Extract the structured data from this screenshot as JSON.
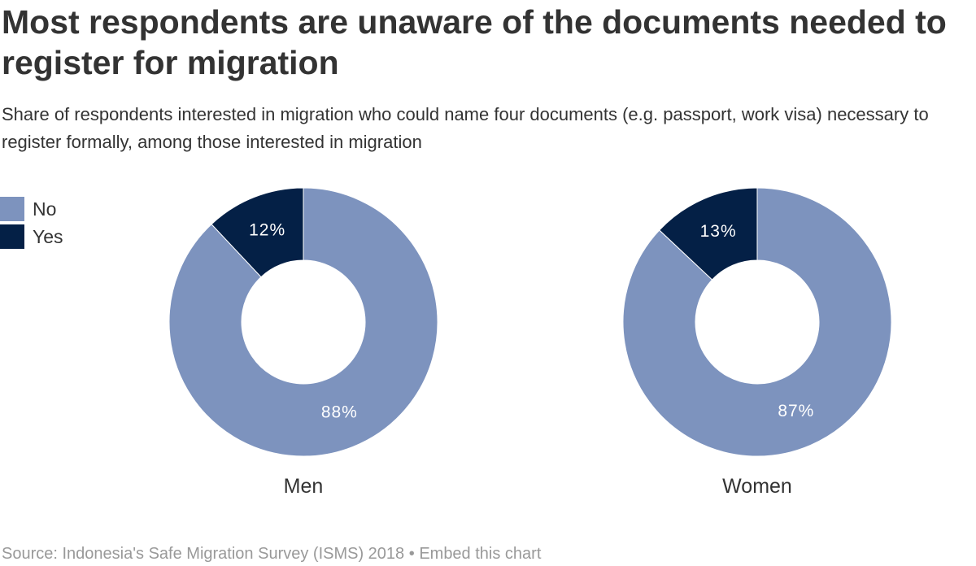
{
  "title": "Most respondents are unaware of the documents needed to register for migration",
  "subtitle": "Share of respondents interested in migration who could name four documents (e.g. passport, work visa) necessary to register formally, among those interested in migration",
  "legend": [
    {
      "label": "No",
      "color": "#7d93be"
    },
    {
      "label": "Yes",
      "color": "#042046"
    }
  ],
  "footer": {
    "source": "Source: Indonesia's Safe Migration Survey (ISMS) 2018",
    "separator": " • ",
    "embed_label": "Embed this chart"
  },
  "chart_data": [
    {
      "type": "pie",
      "title": "Men",
      "categories": [
        "No",
        "Yes"
      ],
      "values": [
        88,
        12
      ],
      "labels": [
        "88%",
        "12%"
      ],
      "colors": [
        "#7d93be",
        "#042046"
      ]
    },
    {
      "type": "pie",
      "title": "Women",
      "categories": [
        "No",
        "Yes"
      ],
      "values": [
        87,
        13
      ],
      "labels": [
        "87%",
        "13%"
      ],
      "colors": [
        "#7d93be",
        "#042046"
      ]
    }
  ]
}
